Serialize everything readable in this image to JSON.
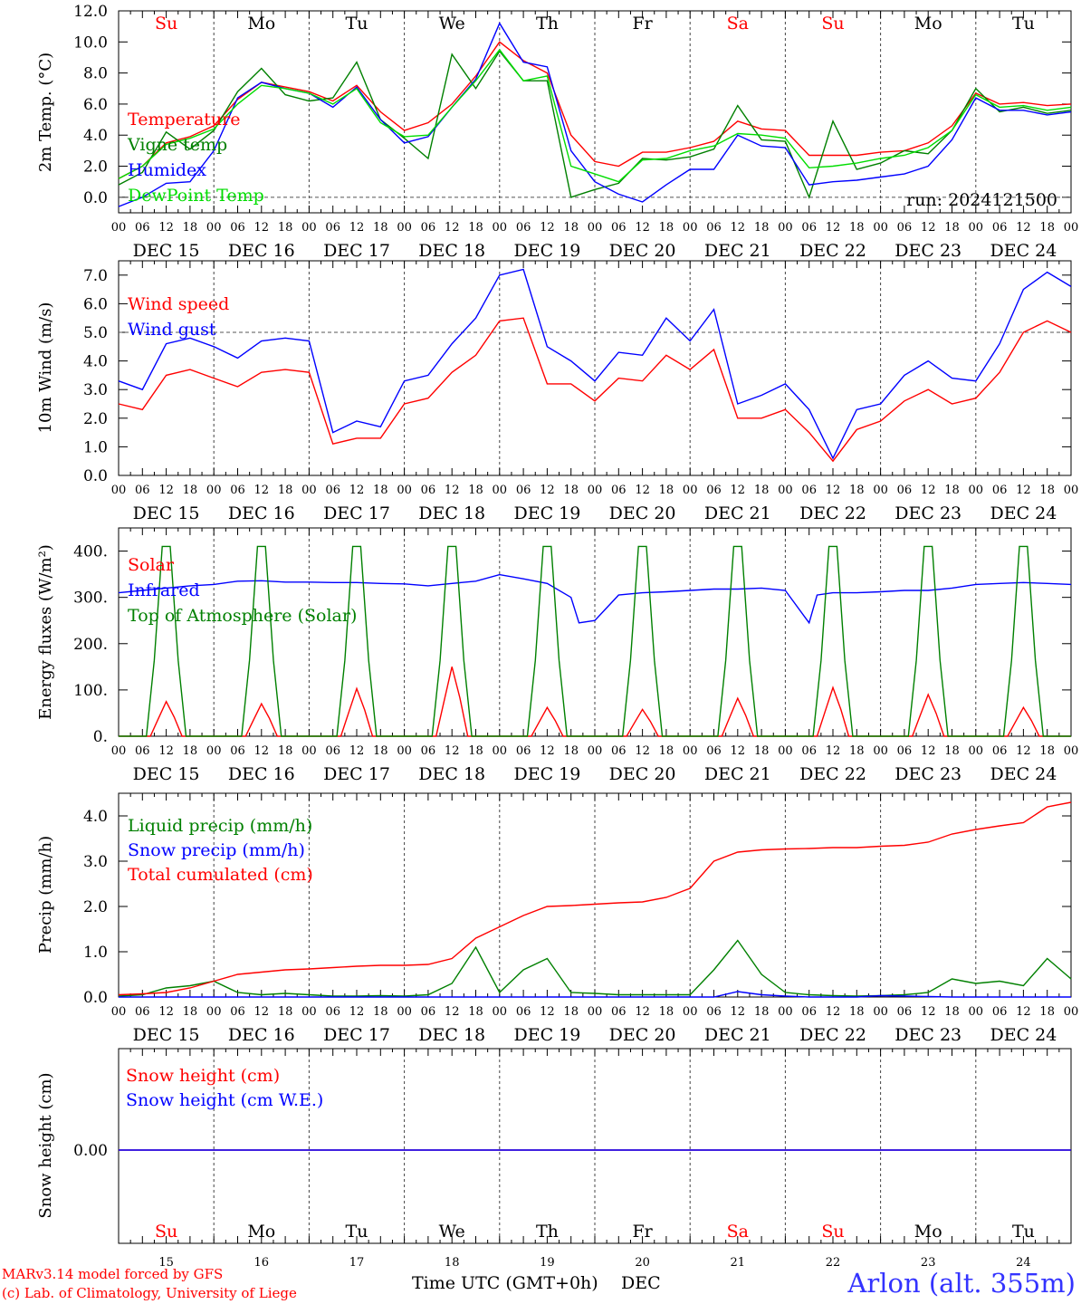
{
  "meta": {
    "run": "run: 2024121500",
    "model_line": "MARv3.14 model forced by GFS",
    "credit_line": "(c) Lab. of Climatology, University of Liege",
    "station": "Arlon (alt. 355m)",
    "xaxis_title": "Time UTC (GMT+0h)",
    "month": "DEC"
  },
  "colors": {
    "red": "#ff0000",
    "green": "#008000",
    "blue": "#0000ff",
    "lightgreen": "#00dd00",
    "grey": "#555555"
  },
  "days": {
    "labels": [
      "DEC 15",
      "DEC 16",
      "DEC 17",
      "DEC 18",
      "DEC 19",
      "DEC 20",
      "DEC 21",
      "DEC 22",
      "DEC 23",
      "DEC 24"
    ],
    "weekdays": [
      "Su",
      "Mo",
      "Tu",
      "We",
      "Th",
      "Fr",
      "Sa",
      "Su",
      "Mo",
      "Tu"
    ],
    "weekday_colors": [
      "red",
      "black",
      "black",
      "black",
      "black",
      "black",
      "red",
      "red",
      "black",
      "black"
    ],
    "numbers": [
      "15",
      "16",
      "17",
      "18",
      "19",
      "20",
      "21",
      "22",
      "23",
      "24"
    ],
    "hour_ticks": [
      "00",
      "06",
      "12",
      "18"
    ],
    "final_tick": "00"
  },
  "chart_data": [
    {
      "type": "line",
      "ylabel": "2m Temp. (°C)",
      "ylim": [
        -1.0,
        12.0
      ],
      "yticks": [
        "0.0",
        "2.0",
        "4.0",
        "6.0",
        "8.0",
        "10.0",
        "12.0"
      ],
      "yticks_values": [
        0,
        2,
        4,
        6,
        8,
        10,
        12
      ],
      "x_unit": "hours since DEC 15 00 UTC",
      "ref_line": 0,
      "series": [
        {
          "name": "Temperature",
          "color": "#ff0000",
          "x": [
            0,
            6,
            12,
            18,
            24,
            30,
            36,
            42,
            48,
            54,
            60,
            66,
            72,
            78,
            84,
            90,
            96,
            102,
            108,
            114,
            120,
            126,
            132,
            138,
            144,
            150,
            156,
            162,
            168,
            174,
            180,
            186,
            192,
            198,
            204,
            210,
            216,
            222,
            228,
            234,
            240
          ],
          "y": [
            1.2,
            2.0,
            3.5,
            3.9,
            4.6,
            6.3,
            7.4,
            7.1,
            6.8,
            6.2,
            7.2,
            5.5,
            4.3,
            4.8,
            6.0,
            7.8,
            10.0,
            8.8,
            8.0,
            4.0,
            2.3,
            2.0,
            2.9,
            2.9,
            3.2,
            3.6,
            4.9,
            4.4,
            4.3,
            2.7,
            2.7,
            2.7,
            2.9,
            3.0,
            3.5,
            4.6,
            6.7,
            6.0,
            6.1,
            5.9,
            6.0
          ]
        },
        {
          "name": "Vigne temp",
          "color": "#008000",
          "x": [
            0,
            6,
            12,
            18,
            24,
            30,
            36,
            42,
            48,
            54,
            60,
            66,
            72,
            78,
            84,
            90,
            96,
            102,
            108,
            114,
            120,
            126,
            132,
            138,
            144,
            150,
            156,
            162,
            168,
            174,
            180,
            186,
            192,
            198,
            204,
            210,
            216,
            222,
            228,
            234,
            240
          ],
          "y": [
            0.8,
            1.6,
            4.2,
            3.1,
            4.3,
            6.8,
            8.3,
            6.6,
            6.2,
            6.4,
            8.7,
            5.0,
            3.8,
            2.5,
            9.2,
            7.0,
            9.4,
            7.5,
            7.5,
            0.0,
            0.5,
            0.9,
            2.5,
            2.4,
            2.6,
            3.1,
            5.9,
            3.7,
            3.6,
            0.0,
            4.9,
            1.8,
            2.2,
            3.0,
            2.8,
            4.3,
            7.0,
            5.5,
            5.8,
            5.4,
            5.6
          ]
        },
        {
          "name": "Humidex",
          "color": "#0000ff",
          "x": [
            0,
            6,
            12,
            18,
            24,
            30,
            36,
            42,
            48,
            54,
            60,
            66,
            72,
            78,
            84,
            90,
            96,
            102,
            108,
            114,
            120,
            126,
            132,
            138,
            144,
            150,
            156,
            162,
            168,
            174,
            180,
            186,
            192,
            198,
            204,
            210,
            216,
            222,
            228,
            234,
            240
          ],
          "y": [
            -0.6,
            0.0,
            0.9,
            1.0,
            3.0,
            6.4,
            7.4,
            7.0,
            6.7,
            5.8,
            7.1,
            5.0,
            3.5,
            3.9,
            5.8,
            7.6,
            11.2,
            8.7,
            8.4,
            3.0,
            1.0,
            0.2,
            -0.3,
            0.8,
            1.8,
            1.8,
            4.0,
            3.3,
            3.2,
            0.8,
            1.0,
            1.1,
            1.3,
            1.5,
            2.0,
            3.7,
            6.4,
            5.6,
            5.6,
            5.3,
            5.5
          ]
        },
        {
          "name": "DewPoint Temp",
          "color": "#00dd00",
          "x": [
            0,
            6,
            12,
            18,
            24,
            30,
            36,
            42,
            48,
            54,
            60,
            66,
            72,
            78,
            84,
            90,
            96,
            102,
            108,
            114,
            120,
            126,
            132,
            138,
            144,
            150,
            156,
            162,
            168,
            174,
            180,
            186,
            192,
            198,
            204,
            210,
            216,
            222,
            228,
            234,
            240
          ],
          "y": [
            1.2,
            2.0,
            3.4,
            3.8,
            4.4,
            6.0,
            7.2,
            7.0,
            6.7,
            6.0,
            7.0,
            4.8,
            3.9,
            4.0,
            5.8,
            7.5,
            9.5,
            7.5,
            7.8,
            2.0,
            1.5,
            1.0,
            2.4,
            2.5,
            3.0,
            3.3,
            4.1,
            4.0,
            3.8,
            1.9,
            2.0,
            2.2,
            2.5,
            2.7,
            3.2,
            4.3,
            6.6,
            5.8,
            5.9,
            5.6,
            5.8
          ]
        }
      ]
    },
    {
      "type": "line",
      "ylabel": "10m Wind (m/s)",
      "ylim": [
        0.0,
        7.5
      ],
      "yticks": [
        "0.0",
        "1.0",
        "2.0",
        "3.0",
        "4.0",
        "5.0",
        "6.0",
        "7.0"
      ],
      "yticks_values": [
        0,
        1,
        2,
        3,
        4,
        5,
        6,
        7
      ],
      "x_unit": "hours since DEC 15 00 UTC",
      "ref_line": 5,
      "series": [
        {
          "name": "Wind speed",
          "color": "#ff0000",
          "x": [
            0,
            6,
            12,
            18,
            24,
            30,
            36,
            42,
            48,
            54,
            60,
            66,
            72,
            78,
            84,
            90,
            96,
            102,
            108,
            114,
            120,
            126,
            132,
            138,
            144,
            150,
            156,
            162,
            168,
            174,
            180,
            186,
            192,
            198,
            204,
            210,
            216,
            222,
            228,
            234,
            240
          ],
          "y": [
            2.5,
            2.3,
            3.5,
            3.7,
            3.4,
            3.1,
            3.6,
            3.7,
            3.6,
            1.1,
            1.3,
            1.3,
            2.5,
            2.7,
            3.6,
            4.2,
            5.4,
            5.5,
            3.2,
            3.2,
            2.6,
            3.4,
            3.3,
            4.2,
            3.7,
            4.4,
            2.0,
            2.0,
            2.3,
            1.5,
            0.5,
            1.6,
            1.9,
            2.6,
            3.0,
            2.5,
            2.7,
            3.6,
            5.0,
            5.4,
            5.0
          ]
        },
        {
          "name": "Wind gust",
          "color": "#0000ff",
          "x": [
            0,
            6,
            12,
            18,
            24,
            30,
            36,
            42,
            48,
            54,
            60,
            66,
            72,
            78,
            84,
            90,
            96,
            102,
            108,
            114,
            120,
            126,
            132,
            138,
            144,
            150,
            156,
            162,
            168,
            174,
            180,
            186,
            192,
            198,
            204,
            210,
            216,
            222,
            228,
            234,
            240
          ],
          "y": [
            3.3,
            3.0,
            4.6,
            4.8,
            4.5,
            4.1,
            4.7,
            4.8,
            4.7,
            1.5,
            1.9,
            1.7,
            3.3,
            3.5,
            4.6,
            5.5,
            7.0,
            7.2,
            4.5,
            4.0,
            3.3,
            4.3,
            4.2,
            5.5,
            4.7,
            5.8,
            2.5,
            2.8,
            3.2,
            2.3,
            0.6,
            2.3,
            2.5,
            3.5,
            4.0,
            3.4,
            3.3,
            4.6,
            6.5,
            7.1,
            6.6
          ]
        }
      ]
    },
    {
      "type": "line",
      "ylabel": "Energy fluxes (W/m²)",
      "ylim": [
        0,
        450
      ],
      "yticks": [
        "0.",
        "100.",
        "200.",
        "300.",
        "400."
      ],
      "yticks_values": [
        0,
        100,
        200,
        300,
        400
      ],
      "x_unit": "hours since DEC 15 00 UTC",
      "series": [
        {
          "name": "Solar",
          "color": "#ff0000",
          "peaks": [
            75,
            70,
            103,
            150,
            62,
            58,
            82,
            105,
            90,
            62
          ]
        },
        {
          "name": "Infrared",
          "color": "#0000ff",
          "x": [
            0,
            6,
            12,
            18,
            24,
            30,
            36,
            42,
            48,
            54,
            60,
            66,
            72,
            78,
            84,
            90,
            96,
            102,
            108,
            114,
            116,
            120,
            126,
            132,
            138,
            144,
            150,
            156,
            162,
            168,
            174,
            176,
            180,
            186,
            192,
            198,
            204,
            210,
            216,
            222,
            228,
            234,
            240
          ],
          "y": [
            310,
            315,
            320,
            325,
            328,
            335,
            336,
            333,
            333,
            332,
            332,
            330,
            329,
            325,
            330,
            335,
            349,
            340,
            330,
            300,
            245,
            250,
            305,
            310,
            312,
            315,
            318,
            318,
            320,
            315,
            245,
            305,
            310,
            310,
            312,
            315,
            315,
            320,
            328,
            330,
            332,
            330,
            328
          ]
        },
        {
          "name": "Top of Atmosphere (Solar)",
          "color": "#008000",
          "peaks": [
            410,
            410,
            410,
            410,
            410,
            410,
            410,
            410,
            410,
            410
          ]
        }
      ]
    },
    {
      "type": "line",
      "ylabel": "Precip (mm/h)",
      "ylim": [
        0.0,
        4.5
      ],
      "yticks": [
        "0.0",
        "1.0",
        "2.0",
        "3.0",
        "4.0"
      ],
      "yticks_values": [
        0,
        1,
        2,
        3,
        4
      ],
      "x_unit": "hours since DEC 15 00 UTC",
      "series": [
        {
          "name": "Liquid precip (mm/h)",
          "color": "#008000",
          "x": [
            0,
            6,
            12,
            18,
            24,
            30,
            36,
            42,
            48,
            54,
            60,
            66,
            72,
            78,
            84,
            90,
            96,
            102,
            108,
            114,
            120,
            126,
            132,
            138,
            144,
            150,
            156,
            162,
            168,
            174,
            180,
            186,
            192,
            198,
            204,
            210,
            216,
            222,
            228,
            234,
            240
          ],
          "y": [
            0.02,
            0.05,
            0.2,
            0.25,
            0.35,
            0.1,
            0.05,
            0.08,
            0.05,
            0.02,
            0.02,
            0.03,
            0.02,
            0.05,
            0.3,
            1.1,
            0.1,
            0.6,
            0.85,
            0.1,
            0.08,
            0.05,
            0.05,
            0.05,
            0.05,
            0.6,
            1.25,
            0.5,
            0.1,
            0.05,
            0.03,
            0.02,
            0.03,
            0.05,
            0.1,
            0.4,
            0.3,
            0.35,
            0.25,
            0.85,
            0.4
          ]
        },
        {
          "name": "Snow precip (mm/h)",
          "color": "#0000ff",
          "x": [
            0,
            6,
            12,
            18,
            24,
            30,
            36,
            42,
            48,
            54,
            60,
            66,
            72,
            78,
            84,
            90,
            96,
            102,
            108,
            114,
            120,
            126,
            132,
            138,
            144,
            150,
            156,
            162,
            168,
            174,
            180,
            186,
            192,
            198,
            204,
            210,
            216,
            222,
            228,
            234,
            240
          ],
          "y": [
            0,
            0,
            0,
            0,
            0,
            0,
            0,
            0,
            0,
            0,
            0,
            0,
            0,
            0,
            0,
            0,
            0,
            0,
            0,
            0,
            0,
            0,
            0,
            0,
            0,
            0,
            0.12,
            0.05,
            0.02,
            0,
            0,
            0,
            0.03,
            0.02,
            0.01,
            0,
            0,
            0,
            0,
            0,
            0
          ]
        },
        {
          "name": "Total cumulated (cm)",
          "color": "#ff0000",
          "x": [
            0,
            6,
            12,
            18,
            24,
            30,
            36,
            42,
            48,
            54,
            60,
            66,
            72,
            78,
            84,
            90,
            96,
            102,
            108,
            114,
            120,
            126,
            132,
            138,
            144,
            150,
            156,
            162,
            168,
            174,
            180,
            186,
            192,
            198,
            204,
            210,
            216,
            222,
            228,
            234,
            240
          ],
          "y": [
            0.05,
            0.07,
            0.1,
            0.2,
            0.35,
            0.5,
            0.55,
            0.6,
            0.62,
            0.65,
            0.68,
            0.7,
            0.7,
            0.72,
            0.85,
            1.3,
            1.55,
            1.8,
            2.0,
            2.02,
            2.05,
            2.08,
            2.1,
            2.2,
            2.4,
            3.0,
            3.2,
            3.25,
            3.27,
            3.28,
            3.3,
            3.3,
            3.33,
            3.35,
            3.42,
            3.6,
            3.7,
            3.78,
            3.85,
            4.2,
            4.3
          ]
        }
      ]
    },
    {
      "type": "line",
      "ylabel": "Snow height (cm)",
      "yticks": [
        "0.00"
      ],
      "yticks_values": [
        0
      ],
      "x_unit": "hours since DEC 15 00 UTC",
      "series": [
        {
          "name": "Snow height (cm)",
          "color": "#ff0000",
          "x": [
            0,
            240
          ],
          "y": [
            0,
            0
          ]
        },
        {
          "name": "Snow height (cm W.E.)",
          "color": "#0000ff",
          "x": [
            0,
            240
          ],
          "y": [
            0,
            0
          ]
        }
      ]
    }
  ]
}
